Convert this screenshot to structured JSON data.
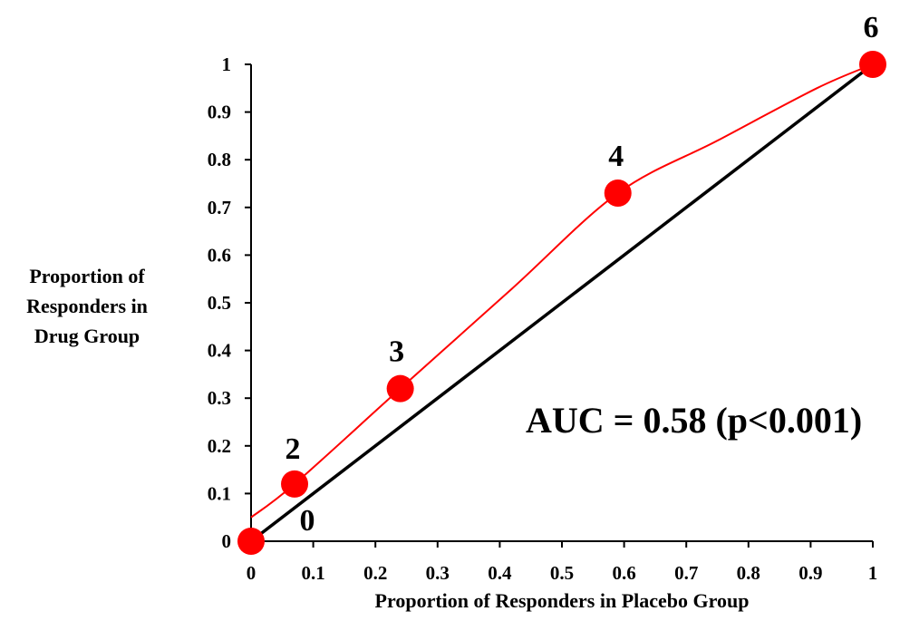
{
  "chart_data": {
    "type": "line",
    "title": "",
    "xlabel": "Proportion of Responders in Placebo Group",
    "ylabel_lines": [
      "Proportion of",
      "Responders in",
      "Drug Group"
    ],
    "xlim": [
      0,
      1
    ],
    "ylim": [
      0,
      1
    ],
    "x_ticks": [
      "0",
      "0.1",
      "0.2",
      "0.3",
      "0.4",
      "0.5",
      "0.6",
      "0.7",
      "0.8",
      "0.9",
      "1"
    ],
    "y_ticks": [
      "0",
      "0.1",
      "0.2",
      "0.3",
      "0.4",
      "0.5",
      "0.6",
      "0.7",
      "0.8",
      "0.9",
      "1"
    ],
    "grid": false,
    "legend": "none",
    "series": [
      {
        "kind": "roc-curve",
        "color": "#ff0000",
        "points": [
          {
            "x": 0.0,
            "y": 0.0,
            "label": "0"
          },
          {
            "x": 0.07,
            "y": 0.12,
            "label": "2"
          },
          {
            "x": 0.24,
            "y": 0.32,
            "label": "3"
          },
          {
            "x": 0.59,
            "y": 0.73,
            "label": "4"
          },
          {
            "x": 1.0,
            "y": 1.0,
            "label": "6"
          }
        ],
        "curve": [
          {
            "x": 0.0,
            "y": 0.05
          },
          {
            "x": 0.07,
            "y": 0.12
          },
          {
            "x": 0.24,
            "y": 0.32
          },
          {
            "x": 0.42,
            "y": 0.53
          },
          {
            "x": 0.59,
            "y": 0.73
          },
          {
            "x": 0.75,
            "y": 0.84
          },
          {
            "x": 0.91,
            "y": 0.95
          },
          {
            "x": 1.0,
            "y": 1.0
          }
        ]
      },
      {
        "kind": "reference-diagonal",
        "color": "#000000",
        "points": [
          {
            "x": 0,
            "y": 0
          },
          {
            "x": 1,
            "y": 1
          }
        ]
      }
    ],
    "annotation": "AUC = 0.58 (p<0.001)"
  }
}
